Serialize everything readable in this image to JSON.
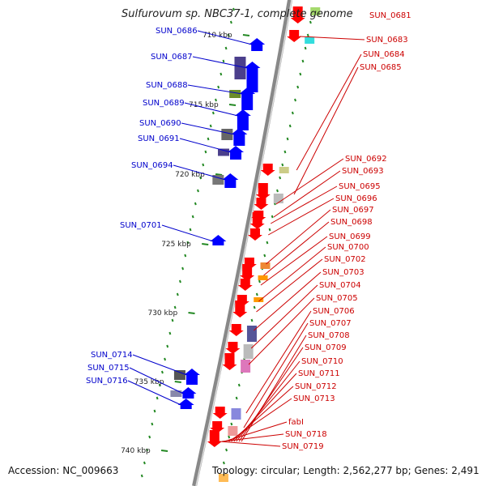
{
  "title": "Sulfurovum sp. NBC37-1, complete genome",
  "footer": {
    "accession": "Accession: NC_009663",
    "topology": "Topology: circular; Length: 2,562,277 bp; Genes: 2,491"
  },
  "colors": {
    "forward_label": "#0000cc",
    "reverse_label": "#cc0000",
    "forward_gene": "#0000ff",
    "reverse_gene": "#ff0000",
    "axis": "#888888",
    "ticks": "#228822"
  },
  "scale_labels": [
    "710 kbp",
    "715 kbp",
    "720 kbp",
    "725 kbp",
    "730 kbp",
    "735 kbp",
    "740 kbp"
  ],
  "forward_genes": [
    "SUN_0686",
    "SUN_0687",
    "SUN_0688",
    "SUN_0689",
    "SUN_0690",
    "SUN_0691",
    "SUN_0694",
    "SUN_0701",
    "SUN_0714",
    "SUN_0715",
    "SUN_0716"
  ],
  "reverse_genes": [
    "SUN_0681",
    "SUN_0683",
    "SUN_0684",
    "SUN_0685",
    "SUN_0692",
    "SUN_0693",
    "SUN_0695",
    "SUN_0696",
    "SUN_0697",
    "SUN_0698",
    "SUN_0699",
    "SUN_0700",
    "SUN_0702",
    "SUN_0703",
    "SUN_0704",
    "SUN_0705",
    "SUN_0706",
    "SUN_0707",
    "SUN_0708",
    "SUN_0709",
    "SUN_0710",
    "SUN_0711",
    "SUN_0712",
    "SUN_0713",
    "fabI",
    "SUN_0718",
    "SUN_0719"
  ]
}
